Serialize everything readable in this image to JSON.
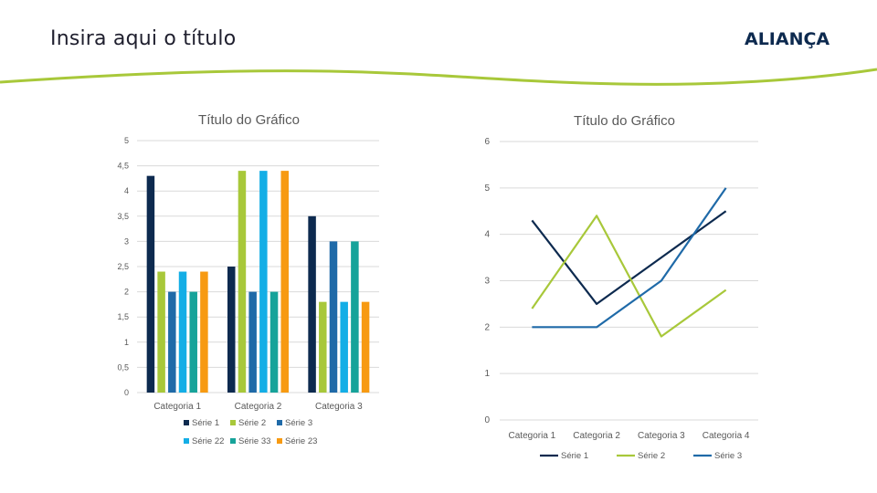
{
  "slide": {
    "title": "Insira aqui o título",
    "logo_text": "ALIANÇA",
    "accent_color": "#a8c83a"
  },
  "chart_data": [
    {
      "type": "bar",
      "title": "Título do Gráfico",
      "categories": [
        "Categoria 1",
        "Categoria 2",
        "Categoria 3"
      ],
      "y_ticks": [
        "0",
        "0,5",
        "1",
        "1,5",
        "2",
        "2,5",
        "3",
        "3,5",
        "4",
        "4,5",
        "5"
      ],
      "ylim": [
        0,
        5
      ],
      "grid": true,
      "legend_position": "bottom",
      "series": [
        {
          "name": "Série 1",
          "color": "#0d2a4f",
          "values": [
            4.3,
            2.5,
            3.5
          ]
        },
        {
          "name": "Série 2",
          "color": "#a8c83a",
          "values": [
            2.4,
            4.4,
            1.8
          ]
        },
        {
          "name": "Série 3",
          "color": "#1f6aa8",
          "values": [
            2.0,
            2.0,
            3.0
          ]
        },
        {
          "name": "Série 22",
          "color": "#14aee6",
          "values": [
            2.4,
            4.4,
            1.8
          ]
        },
        {
          "name": "Série 33",
          "color": "#16a39a",
          "values": [
            2.0,
            2.0,
            3.0
          ]
        },
        {
          "name": "Série 23",
          "color": "#f79a12",
          "values": [
            2.4,
            4.4,
            1.8
          ]
        }
      ]
    },
    {
      "type": "line",
      "title": "Título do Gráfico",
      "categories": [
        "Categoria 1",
        "Categoria 2",
        "Categoria 3",
        "Categoria 4"
      ],
      "y_ticks": [
        "0",
        "1",
        "2",
        "3",
        "4",
        "5",
        "6"
      ],
      "ylim": [
        0,
        6
      ],
      "grid": true,
      "legend_position": "bottom",
      "series": [
        {
          "name": "Série 1",
          "color": "#0d2a4f",
          "values": [
            4.3,
            2.5,
            3.5,
            4.5
          ]
        },
        {
          "name": "Série 2",
          "color": "#a8c83a",
          "values": [
            2.4,
            4.4,
            1.8,
            2.8
          ]
        },
        {
          "name": "Série 3",
          "color": "#1f6aa8",
          "values": [
            2.0,
            2.0,
            3.0,
            5.0
          ]
        }
      ]
    }
  ]
}
